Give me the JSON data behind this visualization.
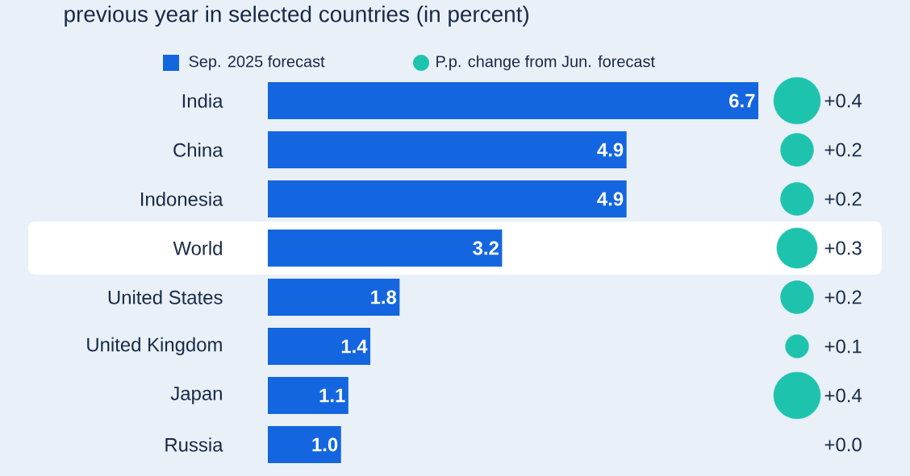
{
  "chart_data": [
    {
      "type": "bar",
      "orientation": "horizontal",
      "title": "previous year in selected countries (in percent)",
      "categories": [
        "India",
        "China",
        "Indonesia",
        "World",
        "United States",
        "United Kingdom",
        "Japan",
        "Russia"
      ],
      "series": [
        {
          "name": "Sep. 2025 forecast",
          "color": "#1466e0",
          "values": [
            6.7,
            4.9,
            4.9,
            3.2,
            1.8,
            1.4,
            1.1,
            1.0
          ],
          "value_labels": [
            "6.7",
            "4.9",
            "4.9",
            "3.2",
            "1.8",
            "1.4",
            "1.1",
            "1.0"
          ]
        }
      ],
      "legend": "top",
      "bands": [
        {
          "axis": "y",
          "from": "World",
          "to": "World",
          "color": "#ffffff"
        }
      ]
    },
    {
      "type": "other",
      "categories": [
        null,
        null,
        null,
        null,
        null,
        null,
        null,
        null
      ],
      "series": [
        {
          "name": "P.p. change from Jun. forecast",
          "color": "#1ec3ad",
          "values": [
            0.4,
            0.2,
            0.2,
            0.3,
            0.2,
            0.1,
            0.4,
            0.0
          ],
          "value_labels": [
            "+0.4",
            "+0.2",
            "+0.2",
            "+0.3",
            "+0.2",
            "+0.1",
            "+0.4",
            "+0.0"
          ]
        }
      ],
      "legend": "top"
    }
  ]
}
